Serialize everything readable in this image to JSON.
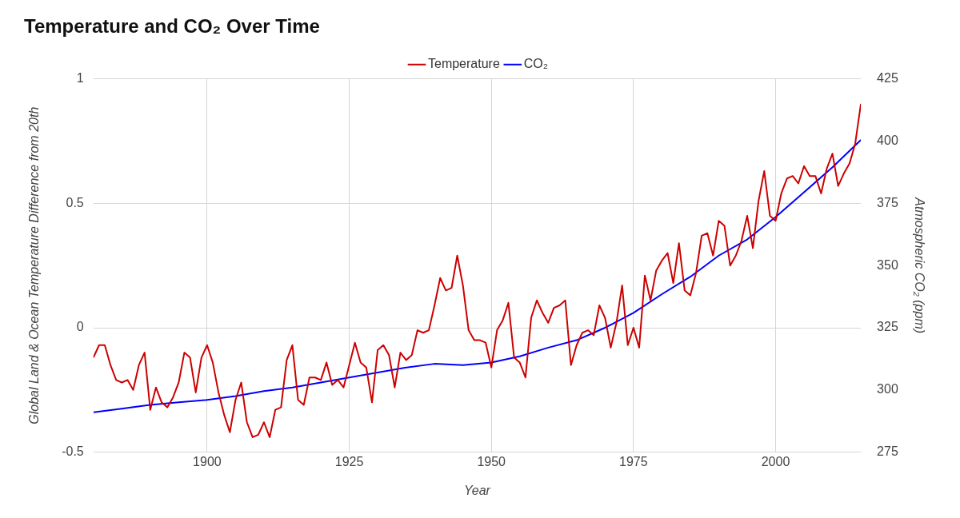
{
  "chart_data": {
    "type": "line",
    "title": "Temperature and CO₂ Over Time",
    "xlabel": "Year",
    "ylabel": "Global Land & Ocean Temperature Difference from 20th",
    "y2label": "Atmospheric CO₂ (ppm)",
    "x": [
      1880,
      1881,
      1882,
      1883,
      1884,
      1885,
      1886,
      1887,
      1888,
      1889,
      1890,
      1891,
      1892,
      1893,
      1894,
      1895,
      1896,
      1897,
      1898,
      1899,
      1900,
      1901,
      1902,
      1903,
      1904,
      1905,
      1906,
      1907,
      1908,
      1909,
      1910,
      1911,
      1912,
      1913,
      1914,
      1915,
      1916,
      1917,
      1918,
      1919,
      1920,
      1921,
      1922,
      1923,
      1924,
      1925,
      1926,
      1927,
      1928,
      1929,
      1930,
      1931,
      1932,
      1933,
      1934,
      1935,
      1936,
      1937,
      1938,
      1939,
      1940,
      1941,
      1942,
      1943,
      1944,
      1945,
      1946,
      1947,
      1948,
      1949,
      1950,
      1951,
      1952,
      1953,
      1954,
      1955,
      1956,
      1957,
      1958,
      1959,
      1960,
      1961,
      1962,
      1963,
      1964,
      1965,
      1966,
      1967,
      1968,
      1969,
      1970,
      1971,
      1972,
      1973,
      1974,
      1975,
      1976,
      1977,
      1978,
      1979,
      1980,
      1981,
      1982,
      1983,
      1984,
      1985,
      1986,
      1987,
      1988,
      1989,
      1990,
      1991,
      1992,
      1993,
      1994,
      1995,
      1996,
      1997,
      1998,
      1999,
      2000,
      2001,
      2002,
      2003,
      2004,
      2005,
      2006,
      2007,
      2008,
      2009,
      2010,
      2011,
      2012,
      2013,
      2014,
      2015
    ],
    "series": [
      {
        "name": "Temperature",
        "color": "#cc0000",
        "values": [
          -0.12,
          -0.07,
          -0.07,
          -0.15,
          -0.21,
          -0.22,
          -0.21,
          -0.25,
          -0.15,
          -0.1,
          -0.33,
          -0.24,
          -0.3,
          -0.32,
          -0.28,
          -0.22,
          -0.1,
          -0.12,
          -0.26,
          -0.12,
          -0.07,
          -0.14,
          -0.26,
          -0.35,
          -0.42,
          -0.29,
          -0.22,
          -0.38,
          -0.44,
          -0.43,
          -0.38,
          -0.44,
          -0.33,
          -0.32,
          -0.13,
          -0.07,
          -0.29,
          -0.31,
          -0.2,
          -0.2,
          -0.21,
          -0.14,
          -0.23,
          -0.21,
          -0.24,
          -0.15,
          -0.06,
          -0.14,
          -0.16,
          -0.3,
          -0.09,
          -0.07,
          -0.11,
          -0.24,
          -0.1,
          -0.13,
          -0.11,
          -0.01,
          -0.02,
          -0.01,
          0.09,
          0.2,
          0.15,
          0.16,
          0.29,
          0.17,
          -0.01,
          -0.05,
          -0.05,
          -0.06,
          -0.16,
          -0.01,
          0.03,
          0.1,
          -0.12,
          -0.14,
          -0.2,
          0.04,
          0.11,
          0.06,
          0.02,
          0.08,
          0.09,
          0.11,
          -0.15,
          -0.07,
          -0.02,
          -0.01,
          -0.03,
          0.09,
          0.04,
          -0.08,
          0.02,
          0.17,
          -0.07,
          0.0,
          -0.08,
          0.21,
          0.11,
          0.23,
          0.27,
          0.3,
          0.18,
          0.34,
          0.15,
          0.13,
          0.22,
          0.37,
          0.38,
          0.29,
          0.43,
          0.41,
          0.25,
          0.29,
          0.35,
          0.45,
          0.32,
          0.51,
          0.63,
          0.45,
          0.43,
          0.54,
          0.6,
          0.61,
          0.58,
          0.65,
          0.61,
          0.61,
          0.54,
          0.64,
          0.7,
          0.57,
          0.62,
          0.66,
          0.74,
          0.9
        ]
      },
      {
        "name": "CO₂",
        "color": "#0000ff",
        "axis": "y2",
        "x": [
          1880,
          1885,
          1890,
          1895,
          1900,
          1905,
          1910,
          1915,
          1920,
          1925,
          1930,
          1935,
          1940,
          1945,
          1950,
          1955,
          1960,
          1965,
          1970,
          1975,
          1980,
          1985,
          1990,
          1995,
          2000,
          2005,
          2010,
          2015
        ],
        "values": [
          291,
          292.5,
          294,
          295,
          296,
          297.5,
          299.5,
          301,
          303,
          305,
          307,
          309,
          310.5,
          310,
          311,
          313.5,
          317,
          320,
          325,
          331,
          338.5,
          345.5,
          354,
          360.5,
          369.5,
          379.5,
          389.5,
          400.5
        ]
      }
    ],
    "xlim": [
      1880,
      2015
    ],
    "xticks": [
      1900,
      1925,
      1950,
      1975,
      2000
    ],
    "ylim": [
      -0.5,
      1
    ],
    "yticks": [
      -0.5,
      0,
      0.5,
      1
    ],
    "y2lim": [
      275,
      425
    ],
    "y2ticks": [
      275,
      300,
      325,
      350,
      375,
      400,
      425
    ],
    "grid": true,
    "legend": "top",
    "marker": "none",
    "line_style": "solid"
  }
}
